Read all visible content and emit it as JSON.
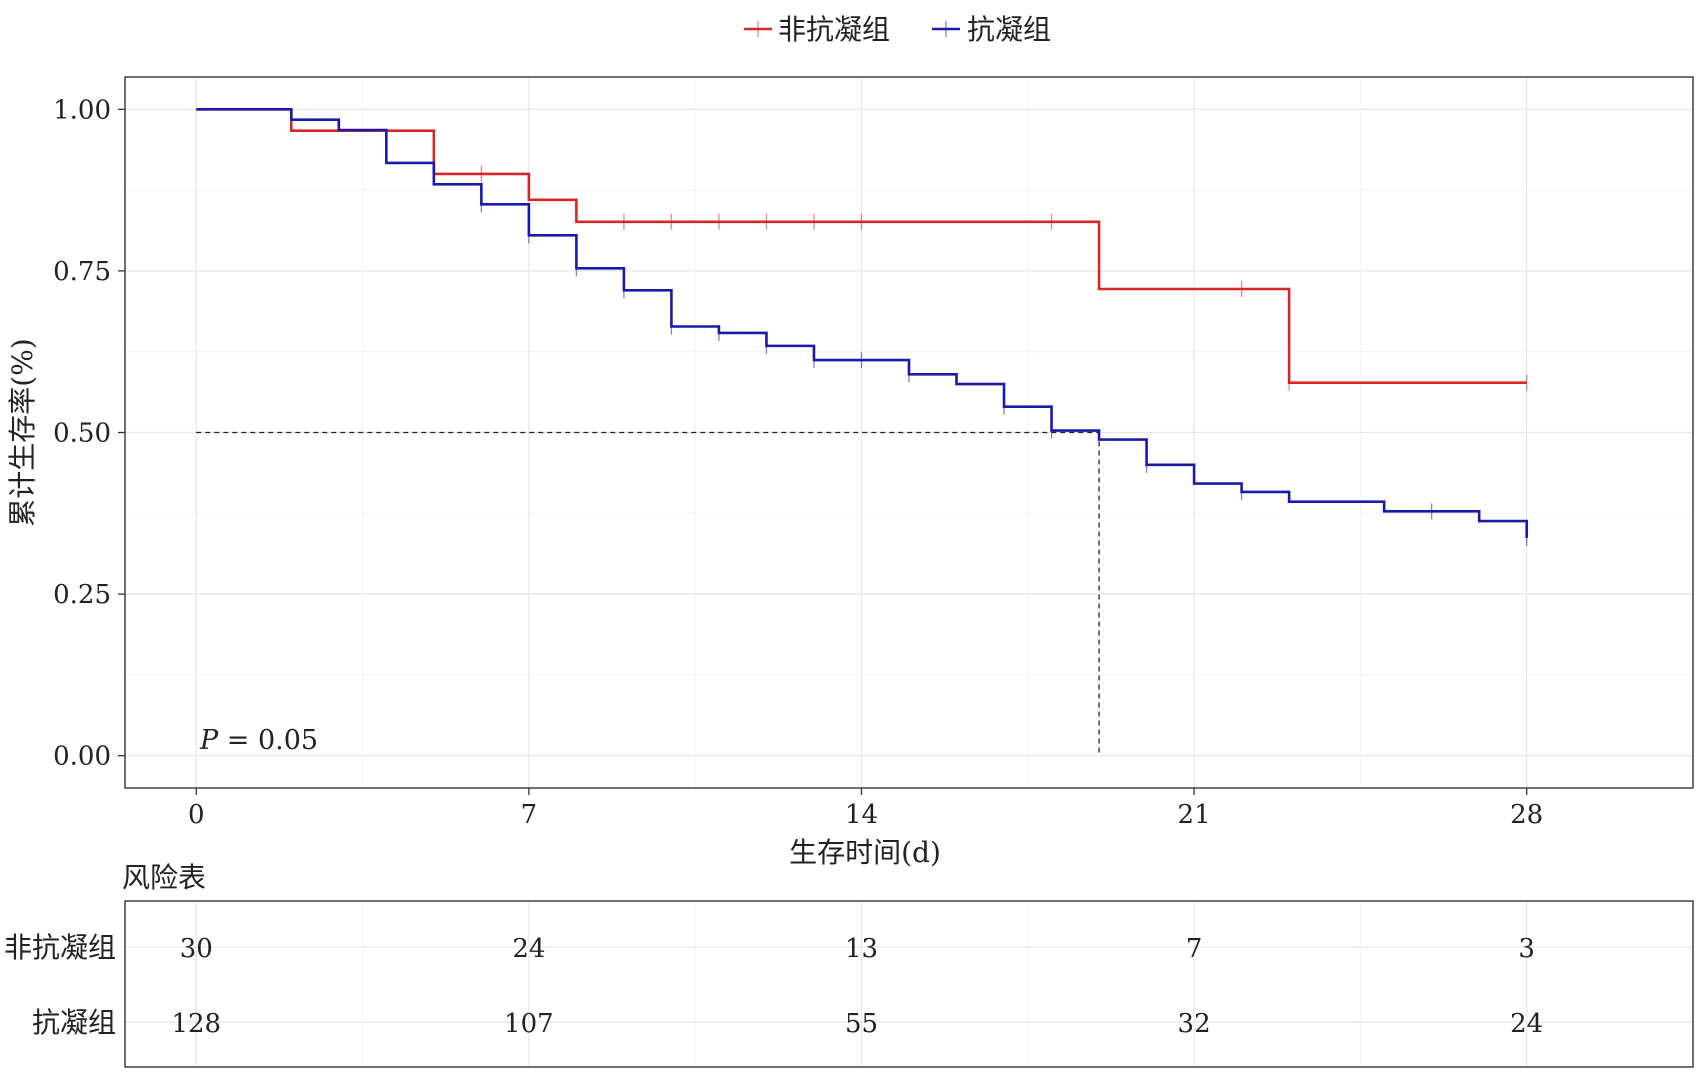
{
  "chart_data": {
    "type": "line",
    "subtype": "kaplan-meier",
    "xlabel": "生存时间(d)",
    "ylabel": "累计生存率(%)",
    "xlim": [
      -1.5,
      31.5
    ],
    "ylim": [
      -0.05,
      1.05
    ],
    "xticks": [
      0,
      7,
      14,
      21,
      28
    ],
    "yticks": [
      0.0,
      0.25,
      0.5,
      0.75,
      1.0
    ],
    "ytick_labels": [
      "0.00",
      "0.25",
      "0.50",
      "0.75",
      "1.00"
    ],
    "grid": true,
    "legend_position": "top",
    "annotation": {
      "label": "P",
      "text": " = 0.05"
    },
    "median_line": {
      "y": 0.5,
      "x": 19.0
    },
    "series": [
      {
        "name": "非抗凝组",
        "color": "#d62728",
        "steps": [
          [
            0,
            1.0
          ],
          [
            2,
            0.967
          ],
          [
            5,
            0.9
          ],
          [
            7,
            0.86
          ],
          [
            8,
            0.826
          ],
          [
            19,
            0.722
          ],
          [
            23,
            0.577
          ],
          [
            28,
            0.577
          ]
        ],
        "censors": [
          [
            6,
            0.9
          ],
          [
            9,
            0.826
          ],
          [
            10,
            0.826
          ],
          [
            11,
            0.826
          ],
          [
            12,
            0.826
          ],
          [
            13,
            0.826
          ],
          [
            14,
            0.826
          ],
          [
            18,
            0.826
          ],
          [
            22,
            0.722
          ],
          [
            23,
            0.577
          ],
          [
            28,
            0.577
          ]
        ]
      },
      {
        "name": "抗凝组",
        "color": "#1a1aa6",
        "steps": [
          [
            0,
            1.0
          ],
          [
            2,
            0.984
          ],
          [
            3,
            0.968
          ],
          [
            4,
            0.917
          ],
          [
            5,
            0.884
          ],
          [
            6,
            0.853
          ],
          [
            7,
            0.805
          ],
          [
            8,
            0.754
          ],
          [
            9,
            0.72
          ],
          [
            10,
            0.664
          ],
          [
            11,
            0.654
          ],
          [
            12,
            0.634
          ],
          [
            13,
            0.612
          ],
          [
            15,
            0.59
          ],
          [
            16,
            0.575
          ],
          [
            17,
            0.54
          ],
          [
            18,
            0.503
          ],
          [
            19,
            0.489
          ],
          [
            20,
            0.45
          ],
          [
            21,
            0.421
          ],
          [
            22,
            0.408
          ],
          [
            23,
            0.393
          ],
          [
            25,
            0.378
          ],
          [
            27,
            0.363
          ],
          [
            28,
            0.337
          ]
        ],
        "censors": [
          [
            6,
            0.853
          ],
          [
            7,
            0.805
          ],
          [
            8,
            0.754
          ],
          [
            9,
            0.72
          ],
          [
            10,
            0.664
          ],
          [
            11,
            0.654
          ],
          [
            12,
            0.634
          ],
          [
            13,
            0.612
          ],
          [
            14,
            0.612
          ],
          [
            15,
            0.59
          ],
          [
            17,
            0.54
          ],
          [
            18,
            0.503
          ],
          [
            20,
            0.45
          ],
          [
            22,
            0.408
          ],
          [
            26,
            0.378
          ],
          [
            28,
            0.337
          ]
        ]
      }
    ],
    "risk_table": {
      "title": "风险表",
      "times": [
        0,
        7,
        14,
        21,
        28
      ],
      "rows": [
        {
          "name": "非抗凝组",
          "values": [
            "30",
            "24",
            "13",
            "7",
            "3"
          ]
        },
        {
          "name": "抗凝组",
          "values": [
            "128",
            "107",
            "55",
            "32",
            "24"
          ]
        }
      ]
    }
  }
}
